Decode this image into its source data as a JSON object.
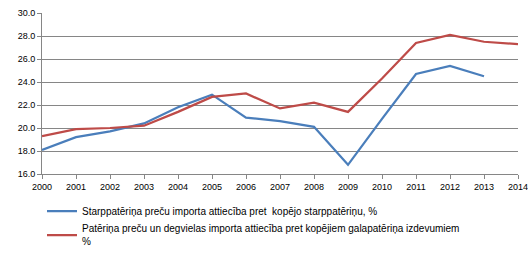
{
  "chart_data": {
    "type": "line",
    "categories": [
      "2000",
      "2001",
      "2002",
      "2003",
      "2004",
      "2005",
      "2006",
      "2007",
      "2008",
      "2009",
      "2010",
      "2011",
      "2012",
      "2013",
      "2014"
    ],
    "series": [
      {
        "name": "Starppatēriņa preču importa attiecība pret  kopējo starppatēriņu, %",
        "color": "#4a7ebb",
        "values": [
          18.1,
          19.2,
          19.7,
          20.4,
          21.8,
          22.9,
          20.9,
          20.6,
          20.1,
          16.8,
          20.8,
          24.7,
          25.4,
          24.5,
          null
        ]
      },
      {
        "name": "Patēriņa preču un degvielas importa attiecība pret kopējiem galapatēriņa izdevumiem %",
        "color": "#be4b48",
        "values": [
          19.3,
          19.9,
          20.0,
          20.2,
          21.4,
          22.7,
          23.0,
          21.7,
          22.2,
          21.4,
          24.3,
          27.4,
          28.1,
          27.5,
          27.3
        ]
      }
    ],
    "ylim": [
      16,
      30
    ],
    "yticks": [
      {
        "value": 16,
        "label": "16.0"
      },
      {
        "value": 18,
        "label": "18.0"
      },
      {
        "value": 20,
        "label": "20.0"
      },
      {
        "value": 22,
        "label": "22.0"
      },
      {
        "value": 24,
        "label": "24.0"
      },
      {
        "value": 26,
        "label": "26.0"
      },
      {
        "value": 28,
        "label": "28.0"
      },
      {
        "value": 30,
        "label": "30.0"
      }
    ],
    "grid": true,
    "legend": "bottom"
  }
}
